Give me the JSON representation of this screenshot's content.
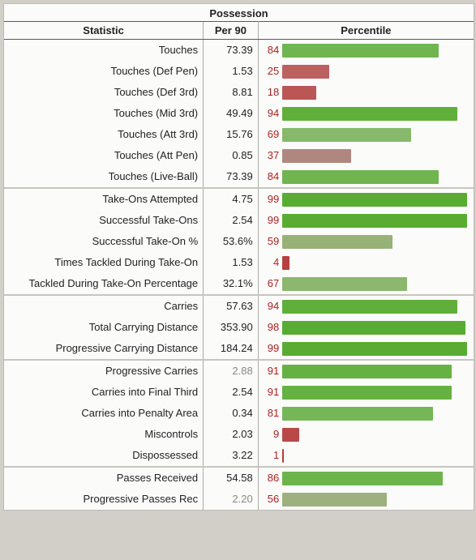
{
  "title": "Possession",
  "headers": {
    "stat": "Statistic",
    "p90": "Per 90",
    "pct": "Percentile"
  },
  "barMaxWidth": 230,
  "colorStops": [
    {
      "pct": 0,
      "color": "#b53b3b"
    },
    {
      "pct": 25,
      "color": "#bc6160"
    },
    {
      "pct": 45,
      "color": "#a8a094"
    },
    {
      "pct": 55,
      "color": "#9db07f"
    },
    {
      "pct": 75,
      "color": "#7fbb63"
    },
    {
      "pct": 100,
      "color": "#56ab2f"
    }
  ],
  "groups": [
    [
      {
        "stat": "Touches",
        "p90": "73.39",
        "pct": 84
      },
      {
        "stat": "Touches (Def Pen)",
        "p90": "1.53",
        "pct": 25
      },
      {
        "stat": "Touches (Def 3rd)",
        "p90": "8.81",
        "pct": 18
      },
      {
        "stat": "Touches (Mid 3rd)",
        "p90": "49.49",
        "pct": 94
      },
      {
        "stat": "Touches (Att 3rd)",
        "p90": "15.76",
        "pct": 69
      },
      {
        "stat": "Touches (Att Pen)",
        "p90": "0.85",
        "pct": 37
      },
      {
        "stat": "Touches (Live-Ball)",
        "p90": "73.39",
        "pct": 84
      }
    ],
    [
      {
        "stat": "Take-Ons Attempted",
        "p90": "4.75",
        "pct": 99
      },
      {
        "stat": "Successful Take-Ons",
        "p90": "2.54",
        "pct": 99
      },
      {
        "stat": "Successful Take-On %",
        "p90": "53.6%",
        "pct": 59
      },
      {
        "stat": "Times Tackled During Take-On",
        "p90": "1.53",
        "pct": 4
      },
      {
        "stat": "Tackled During Take-On Percentage",
        "p90": "32.1%",
        "pct": 67
      }
    ],
    [
      {
        "stat": "Carries",
        "p90": "57.63",
        "pct": 94
      },
      {
        "stat": "Total Carrying Distance",
        "p90": "353.90",
        "pct": 98
      },
      {
        "stat": "Progressive Carrying Distance",
        "p90": "184.24",
        "pct": 99
      }
    ],
    [
      {
        "stat": "Progressive Carries",
        "p90": "2.88",
        "pct": 91,
        "muted": true
      },
      {
        "stat": "Carries into Final Third",
        "p90": "2.54",
        "pct": 91
      },
      {
        "stat": "Carries into Penalty Area",
        "p90": "0.34",
        "pct": 81
      },
      {
        "stat": "Miscontrols",
        "p90": "2.03",
        "pct": 9
      },
      {
        "stat": "Dispossessed",
        "p90": "3.22",
        "pct": 1
      }
    ],
    [
      {
        "stat": "Passes Received",
        "p90": "54.58",
        "pct": 86
      },
      {
        "stat": "Progressive Passes Rec",
        "p90": "2.20",
        "pct": 56,
        "muted": true
      }
    ]
  ]
}
